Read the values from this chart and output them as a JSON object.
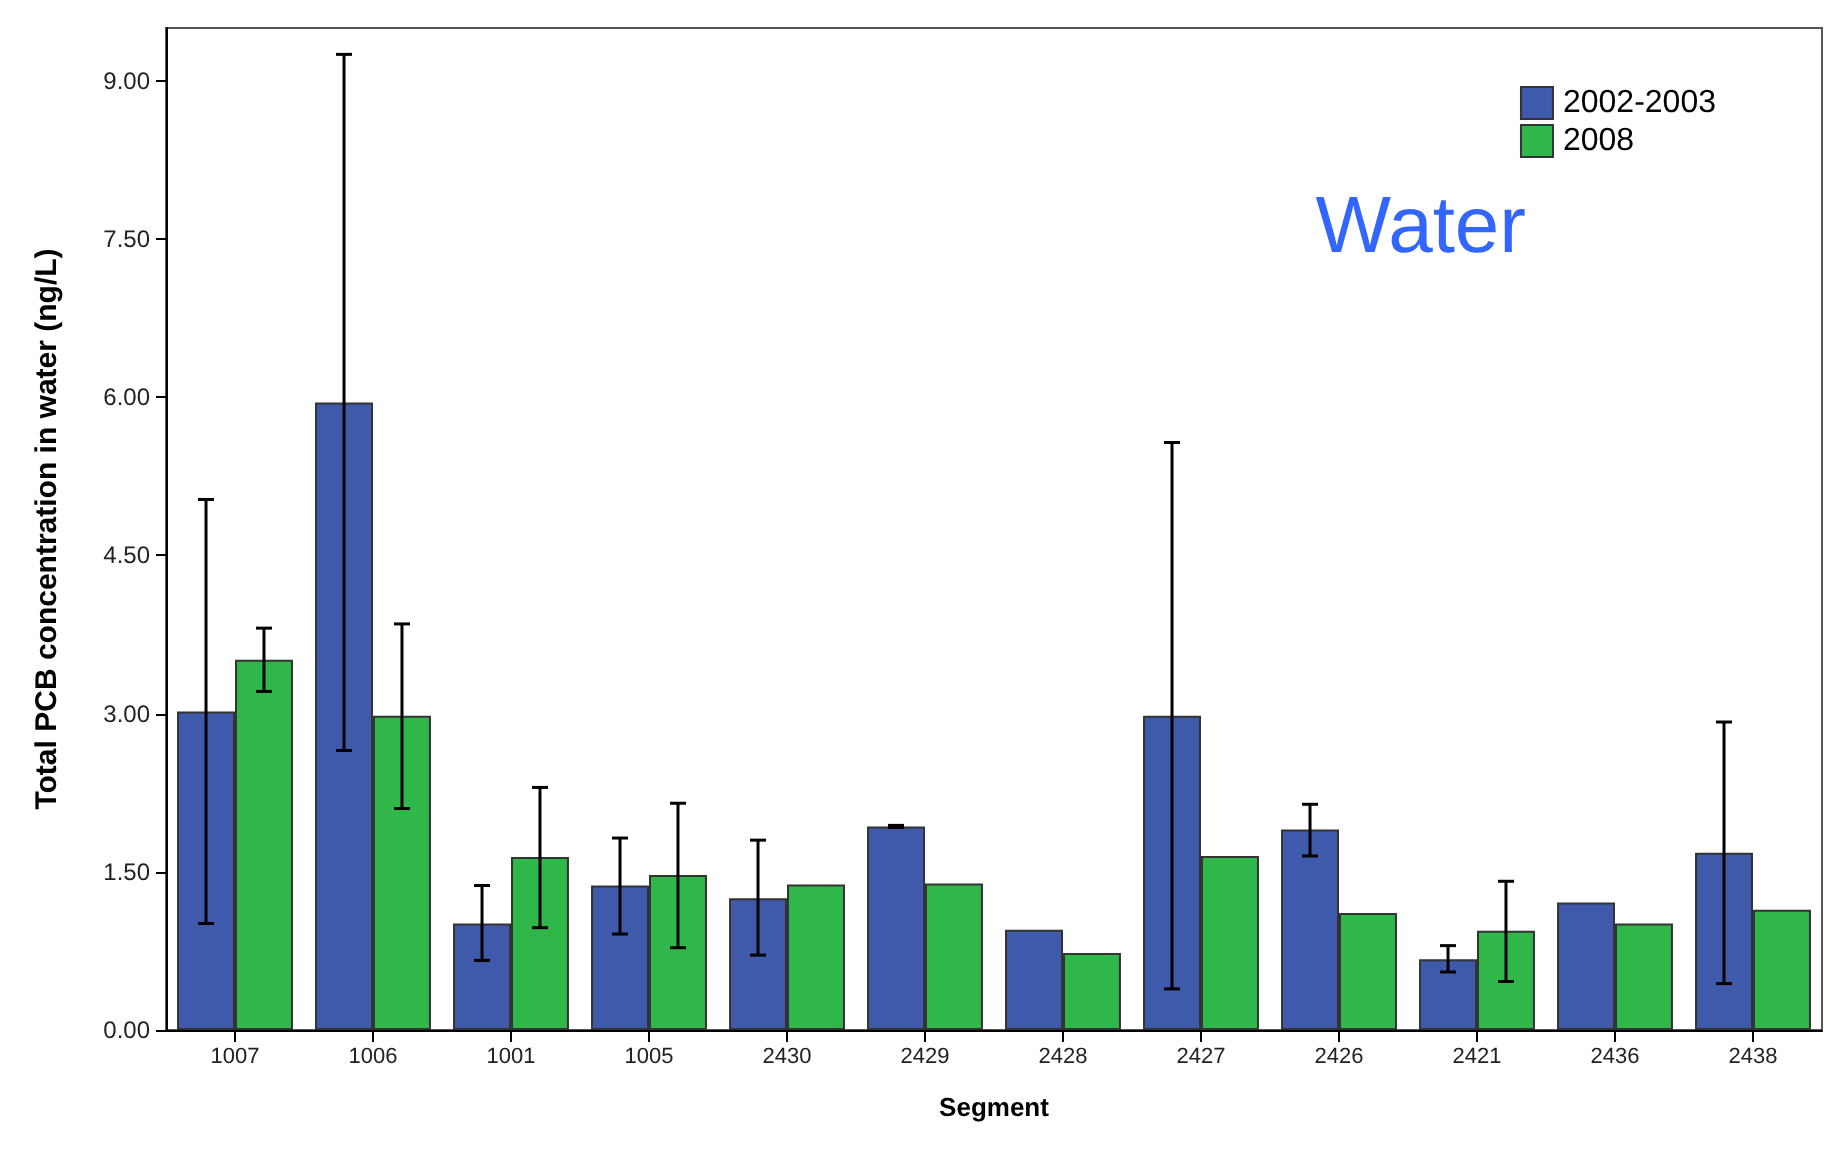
{
  "chart_data": {
    "type": "bar",
    "xlabel": "Segment",
    "ylabel": "Total PCB concentration in water (ng/L)",
    "annotations": [
      "Water"
    ],
    "categories": [
      "1007",
      "1006",
      "1001",
      "1005",
      "2430",
      "2429",
      "2428",
      "2427",
      "2426",
      "2421",
      "2436",
      "2438"
    ],
    "series": [
      {
        "name": "2002-2003",
        "color": "#3f59ab",
        "values": [
          3.02,
          5.95,
          1.01,
          1.37,
          1.25,
          1.93,
          0.95,
          2.98,
          1.9,
          0.67,
          1.21,
          1.68
        ],
        "errors": [
          [
            1.01,
            5.03
          ],
          [
            2.65,
            9.25
          ],
          [
            0.66,
            1.37
          ],
          [
            0.91,
            1.82
          ],
          [
            0.71,
            1.8
          ],
          [
            1.92,
            1.94
          ],
          null,
          [
            0.39,
            5.57
          ],
          [
            1.65,
            2.14
          ],
          [
            0.55,
            0.8
          ],
          null,
          [
            0.44,
            2.92
          ]
        ]
      },
      {
        "name": "2008",
        "color": "#2fb74a",
        "values": [
          3.51,
          2.98,
          1.64,
          1.47,
          1.38,
          1.39,
          0.73,
          1.65,
          1.11,
          0.94,
          1.01,
          1.14
        ],
        "errors": [
          [
            3.21,
            3.81
          ],
          [
            2.1,
            3.85
          ],
          [
            0.97,
            2.3
          ],
          [
            0.78,
            2.15
          ],
          null,
          null,
          null,
          null,
          null,
          [
            0.46,
            1.41
          ],
          null,
          null
        ]
      }
    ],
    "ylim": [
      0,
      9.5
    ],
    "yticks": [
      {
        "value": 0,
        "label": "0.00"
      },
      {
        "value": 1.5,
        "label": "1.50"
      },
      {
        "value": 3,
        "label": "3.00"
      },
      {
        "value": 4.5,
        "label": "4.50"
      },
      {
        "value": 6,
        "label": "6.00"
      },
      {
        "value": 7.5,
        "label": "7.50"
      },
      {
        "value": 9,
        "label": "9.00"
      }
    ],
    "grid": false,
    "legend": "top right"
  }
}
